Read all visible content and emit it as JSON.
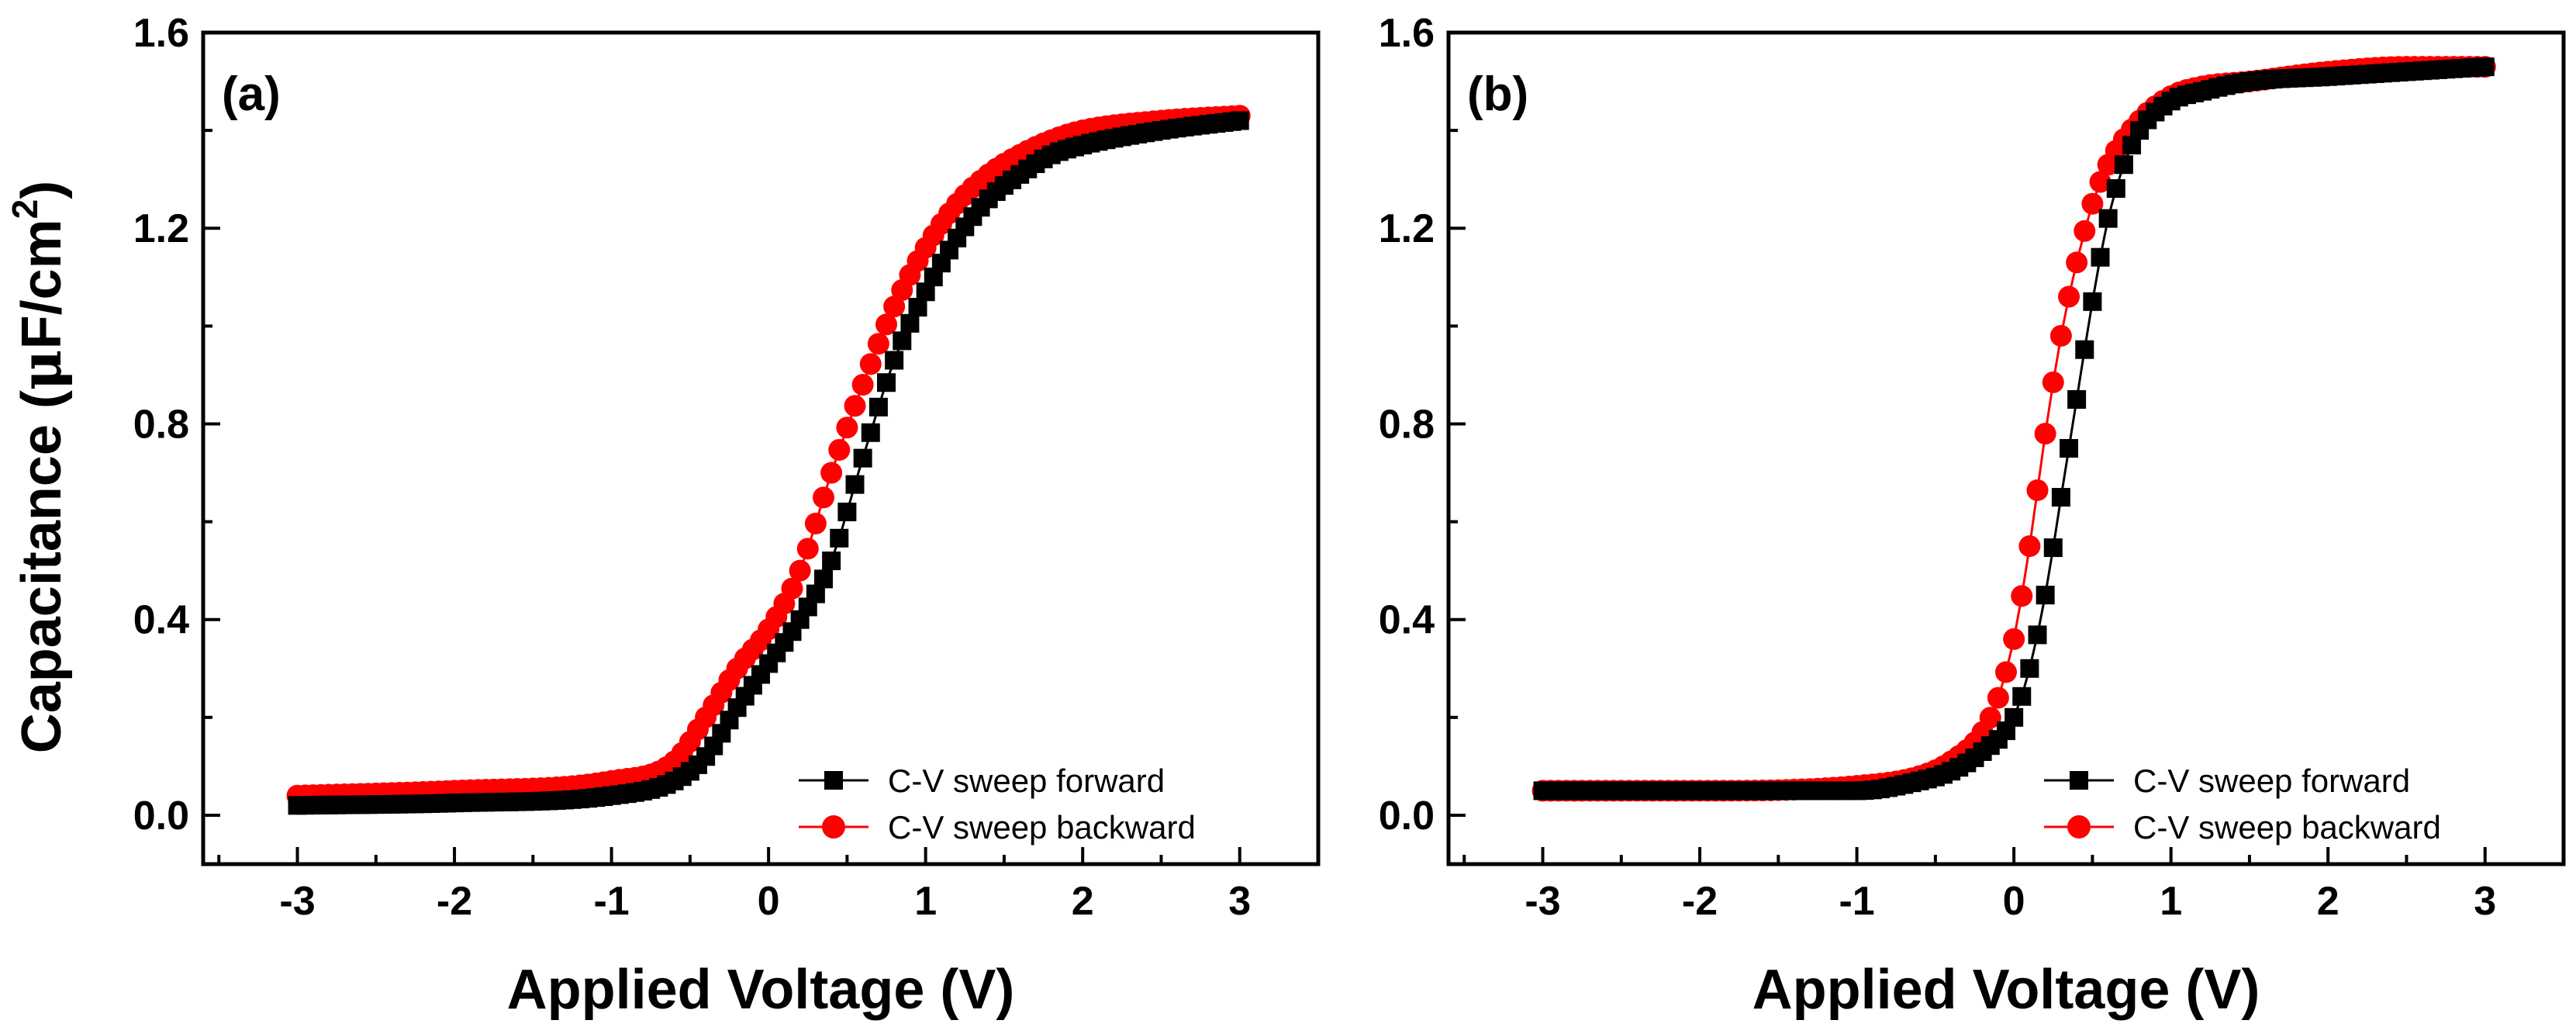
{
  "figure": {
    "colors": {
      "forward": "#000000",
      "backward": "#ff0000",
      "axis": "#000000",
      "background": "#ffffff"
    }
  },
  "chart_data": [
    {
      "type": "scatter",
      "panel_label": "(a)",
      "xlabel": "Applied Voltage (V)",
      "ylabel": "Capacitance (μF/cm²)",
      "ylabel_main": "Capacitance (",
      "ylabel_mu": "μ",
      "ylabel_unit": "F/cm",
      "ylabel_sup": "2",
      "ylabel_close": ")",
      "xlim": [
        -3.6,
        3.5
      ],
      "ylim": [
        -0.1,
        1.6
      ],
      "xticks": [
        -3,
        -2,
        -1,
        0,
        1,
        2,
        3
      ],
      "yticks": [
        0.0,
        0.4,
        0.8,
        1.2,
        1.6
      ],
      "xtick_labels": [
        "-3",
        "-2",
        "-1",
        "0",
        "1",
        "2",
        "3"
      ],
      "ytick_labels": [
        "0.0",
        "0.4",
        "0.8",
        "1.2",
        "1.6"
      ],
      "legend_position": "lower-right",
      "series": [
        {
          "name": "C-V sweep forward",
          "marker": "square",
          "color": "#000000",
          "x": [
            -3.0,
            -2.0,
            -1.0,
            -0.6,
            -0.4,
            -0.2,
            0.0,
            0.2,
            0.4,
            0.6,
            0.8,
            1.0,
            1.2,
            1.4,
            1.6,
            1.8,
            2.0,
            2.5,
            3.0
          ],
          "y": [
            0.02,
            0.025,
            0.04,
            0.07,
            0.12,
            0.22,
            0.31,
            0.4,
            0.52,
            0.73,
            0.93,
            1.07,
            1.18,
            1.26,
            1.31,
            1.35,
            1.37,
            1.4,
            1.42
          ]
        },
        {
          "name": "C-V sweep backward",
          "marker": "circle",
          "color": "#ff0000",
          "x": [
            -3.0,
            -2.0,
            -1.0,
            -0.6,
            -0.4,
            -0.2,
            0.0,
            0.2,
            0.4,
            0.6,
            0.8,
            1.0,
            1.2,
            1.4,
            1.6,
            1.8,
            2.0,
            2.5,
            3.0
          ],
          "y": [
            0.04,
            0.05,
            0.07,
            0.11,
            0.2,
            0.3,
            0.38,
            0.5,
            0.7,
            0.88,
            1.04,
            1.16,
            1.25,
            1.31,
            1.35,
            1.38,
            1.4,
            1.42,
            1.43
          ]
        }
      ]
    },
    {
      "type": "scatter",
      "panel_label": "(b)",
      "xlabel": "Applied Voltage (V)",
      "ylabel": "",
      "xlim": [
        -3.6,
        3.5
      ],
      "ylim": [
        -0.1,
        1.6
      ],
      "xticks": [
        -3,
        -2,
        -1,
        0,
        1,
        2,
        3
      ],
      "yticks": [
        0.0,
        0.4,
        0.8,
        1.2,
        1.6
      ],
      "xtick_labels": [
        "-3",
        "-2",
        "-1",
        "0",
        "1",
        "2",
        "3"
      ],
      "ytick_labels": [
        "0.0",
        "0.4",
        "0.8",
        "1.2",
        "1.6"
      ],
      "legend_position": "lower-right",
      "series": [
        {
          "name": "C-V sweep forward",
          "marker": "square",
          "color": "#000000",
          "x": [
            -3.0,
            -2.0,
            -1.0,
            -0.6,
            -0.4,
            -0.2,
            0.0,
            0.1,
            0.2,
            0.3,
            0.4,
            0.5,
            0.6,
            0.7,
            0.8,
            1.0,
            1.2,
            1.5,
            2.0,
            2.5,
            3.0
          ],
          "y": [
            0.05,
            0.05,
            0.05,
            0.07,
            0.09,
            0.13,
            0.2,
            0.3,
            0.45,
            0.65,
            0.85,
            1.05,
            1.22,
            1.33,
            1.4,
            1.46,
            1.48,
            1.5,
            1.51,
            1.52,
            1.53
          ]
        },
        {
          "name": "C-V sweep backward",
          "marker": "circle",
          "color": "#ff0000",
          "x": [
            -3.0,
            -2.0,
            -1.0,
            -0.6,
            -0.4,
            -0.2,
            -0.1,
            0.0,
            0.1,
            0.2,
            0.3,
            0.4,
            0.5,
            0.6,
            0.8,
            1.0,
            1.2,
            1.5,
            2.0,
            2.5,
            3.0
          ],
          "y": [
            0.05,
            0.05,
            0.06,
            0.08,
            0.11,
            0.17,
            0.24,
            0.36,
            0.55,
            0.78,
            0.98,
            1.13,
            1.25,
            1.33,
            1.42,
            1.47,
            1.49,
            1.5,
            1.52,
            1.53,
            1.53
          ]
        }
      ]
    }
  ]
}
